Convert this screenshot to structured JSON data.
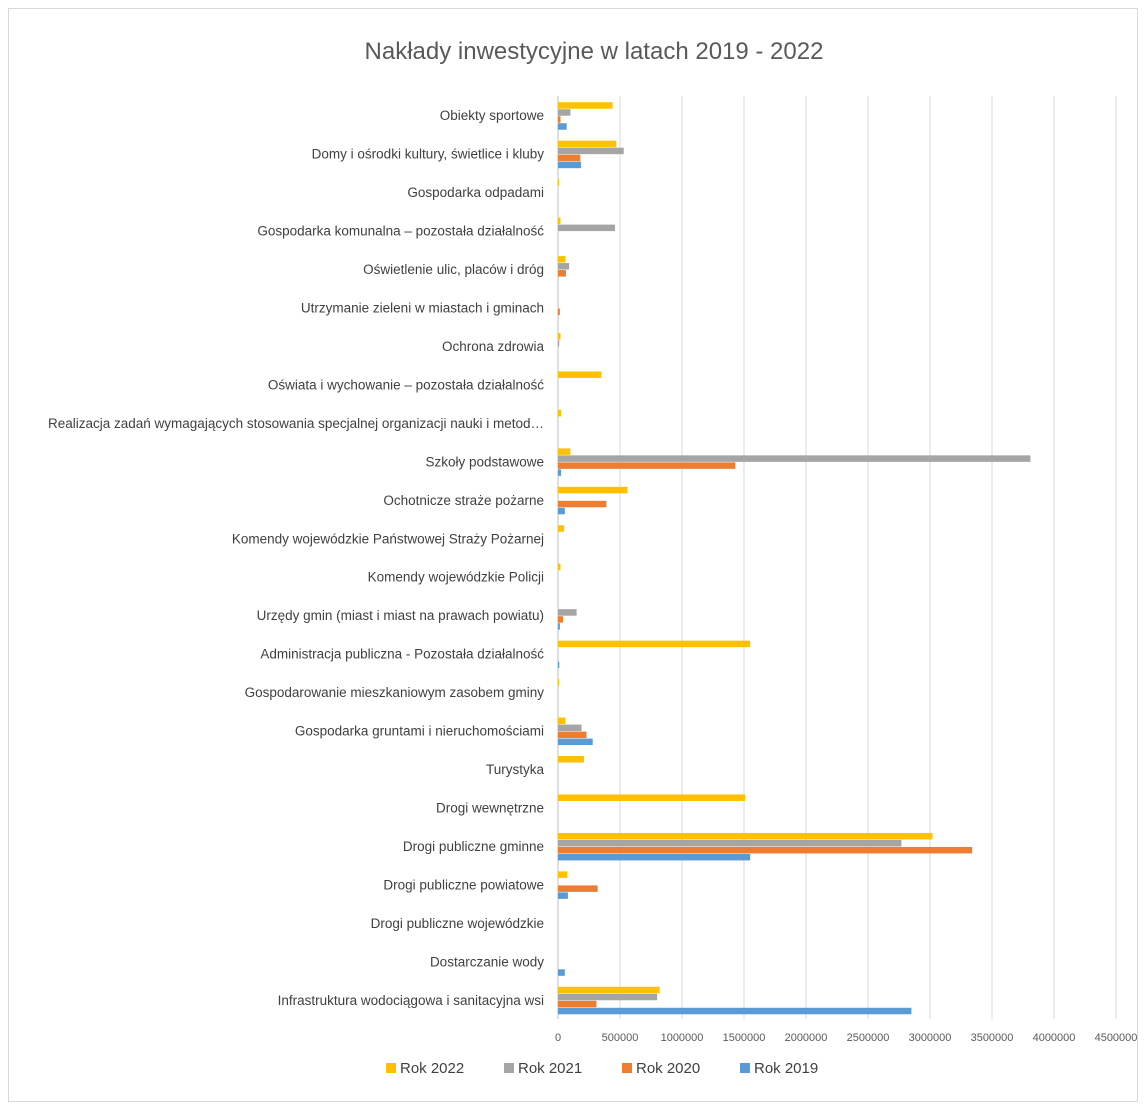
{
  "chart_data": {
    "type": "bar",
    "orientation": "horizontal",
    "title": "Nakłady inwestycyjne w latach 2019 - 2022",
    "xlim": [
      0,
      4500000
    ],
    "x_ticks": [
      "0",
      "500000",
      "1000000",
      "1500000",
      "2000000",
      "2500000",
      "3000000",
      "3500000",
      "4000000",
      "4500000"
    ],
    "grid": true,
    "legend_position": "bottom",
    "categories": [
      "Obiekty sportowe",
      "Domy i ośrodki kultury, świetlice i kluby",
      "Gospodarka odpadami",
      "Gospodarka komunalna – pozostała działalność",
      "Oświetlenie ulic, placów i dróg",
      "Utrzymanie zieleni w miastach i gminach",
      "Ochrona zdrowia",
      "Oświata i wychowanie – pozostała działalność",
      "Realizacja zadań wymagających stosowania specjalnej organizacji nauki i metod…",
      "Szkoły podstawowe",
      "Ochotnicze straże pożarne",
      "Komendy wojewódzkie Państwowej Straży Pożarnej",
      "Komendy wojewódzkie Policji",
      "Urzędy gmin (miast i miast na prawach powiatu)",
      "Administracja publiczna - Pozostała działalność",
      "Gospodarowanie mieszkaniowym zasobem gminy",
      "Gospodarka gruntami i nieruchomościami",
      "Turystyka",
      "Drogi wewnętrzne",
      "Drogi publiczne gminne",
      "Drogi publiczne powiatowe",
      "Drogi publiczne wojewódzkie",
      "Dostarczanie wody",
      "Infrastruktura wodociągowa i sanitacyjna wsi"
    ],
    "series": [
      {
        "name": "Rok 2022",
        "color": "#FFC000",
        "values": [
          440000,
          470000,
          5000,
          20000,
          60000,
          0,
          20000,
          350000,
          25000,
          100000,
          560000,
          50000,
          20000,
          0,
          1550000,
          5000,
          60000,
          210000,
          1510000,
          3020000,
          75000,
          0,
          0,
          820000
        ]
      },
      {
        "name": "Rok 2021",
        "color": "#A5A5A5",
        "values": [
          100000,
          530000,
          0,
          460000,
          90000,
          0,
          10000,
          0,
          0,
          3810000,
          0,
          0,
          0,
          150000,
          0,
          0,
          190000,
          0,
          0,
          2770000,
          0,
          0,
          0,
          800000
        ]
      },
      {
        "name": "Rok 2020",
        "color": "#ED7D31",
        "values": [
          20000,
          180000,
          0,
          0,
          65000,
          15000,
          0,
          0,
          0,
          1430000,
          390000,
          0,
          0,
          40000,
          0,
          0,
          230000,
          0,
          0,
          3340000,
          320000,
          0,
          0,
          310000
        ]
      },
      {
        "name": "Rok 2019",
        "color": "#5B9BD5",
        "values": [
          70000,
          185000,
          0,
          0,
          0,
          0,
          0,
          0,
          0,
          25000,
          55000,
          0,
          0,
          15000,
          10000,
          0,
          280000,
          0,
          0,
          1550000,
          80000,
          0,
          55000,
          2850000
        ]
      }
    ],
    "legend_order": [
      "Rok 2022",
      "Rok 2021",
      "Rok 2020",
      "Rok 2019"
    ]
  }
}
